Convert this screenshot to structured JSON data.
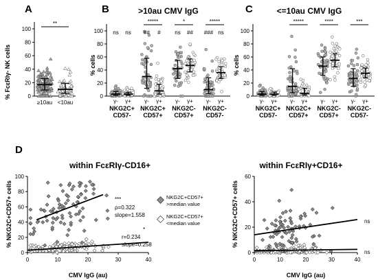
{
  "panels": {
    "A": {
      "label": "A",
      "ylabel": "% FcεRIγ- NK cells",
      "yticks": [
        "0",
        "20",
        "40",
        "60",
        "80",
        "100"
      ],
      "groups": [
        "≥10au",
        "<10au"
      ],
      "sig": "**",
      "chart_data": {
        "type": "scatter",
        "ylim": [
          0,
          100
        ],
        "groups": [
          {
            "name": "≥10au",
            "median": 17,
            "q1": 9,
            "q3": 26,
            "n": 140,
            "marker": "triangle-gray"
          },
          {
            "name": "<10au",
            "median": 10,
            "q1": 4,
            "q3": 19,
            "n": 55,
            "marker": "triangle-white"
          }
        ]
      }
    },
    "B": {
      "label": "B",
      "title": ">10au CMV IgG",
      "ylabel": "% cells",
      "yticks": [
        "0",
        "20",
        "40",
        "60",
        "80",
        "100"
      ],
      "groups": [
        {
          "line1": "NKG2C+",
          "line2": "CD57-",
          "sig": "",
          "ann": [
            "ns",
            "ns"
          ]
        },
        {
          "line1": "NKG2C+",
          "line2": "CD57+",
          "sig": "*****",
          "ann": [
            "##",
            "#"
          ]
        },
        {
          "line1": "NKG2C-",
          "line2": "CD57+",
          "sig": "*",
          "ann": [
            "ns",
            "##"
          ]
        },
        {
          "line1": "NKG2C-",
          "line2": "CD57-",
          "sig": "*****",
          "ann": [
            "###",
            "ns"
          ]
        }
      ],
      "sublabels": [
        "γ-",
        "γ+"
      ],
      "chart_data": {
        "type": "scatter",
        "ylim": [
          0,
          100
        ],
        "series": [
          {
            "group": "NKG2C+CD57-",
            "subset": "γ-",
            "median": 3,
            "q1": 1,
            "q3": 7
          },
          {
            "group": "NKG2C+CD57-",
            "subset": "γ+",
            "median": 3,
            "q1": 1,
            "q3": 6
          },
          {
            "group": "NKG2C+CD57+",
            "subset": "γ-",
            "median": 30,
            "q1": 12,
            "q3": 58
          },
          {
            "group": "NKG2C+CD57+",
            "subset": "γ+",
            "median": 8,
            "q1": 3,
            "q3": 18
          },
          {
            "group": "NKG2C-CD57+",
            "subset": "γ-",
            "median": 42,
            "q1": 27,
            "q3": 55
          },
          {
            "group": "NKG2C-CD57+",
            "subset": "γ+",
            "median": 47,
            "q1": 37,
            "q3": 57
          },
          {
            "group": "NKG2C-CD57-",
            "subset": "γ-",
            "median": 10,
            "q1": 4,
            "q3": 28
          },
          {
            "group": "NKG2C-CD57-",
            "subset": "γ+",
            "median": 36,
            "q1": 27,
            "q3": 45
          }
        ]
      }
    },
    "C": {
      "label": "C",
      "title": "<=10au CMV IgG",
      "ylabel": "% cells",
      "yticks": [
        "0",
        "20",
        "40",
        "60",
        "80",
        "100"
      ],
      "groups": [
        {
          "line1": "NKG2C+",
          "line2": "CD57-",
          "sig": ""
        },
        {
          "line1": "NKG2C+",
          "line2": "CD57+",
          "sig": "*****"
        },
        {
          "line1": "NKG2C-",
          "line2": "CD57+",
          "sig": "****"
        },
        {
          "line1": "NKG2C-",
          "line2": "CD57-",
          "sig": "***"
        }
      ],
      "sublabels": [
        "γ-",
        "γ+"
      ],
      "chart_data": {
        "type": "scatter",
        "ylim": [
          0,
          100
        ],
        "series": [
          {
            "group": "NKG2C+CD57-",
            "subset": "γ-",
            "median": 3,
            "q1": 1,
            "q3": 7
          },
          {
            "group": "NKG2C+CD57-",
            "subset": "γ+",
            "median": 3,
            "q1": 1,
            "q3": 6
          },
          {
            "group": "NKG2C+CD57+",
            "subset": "γ-",
            "median": 15,
            "q1": 5,
            "q3": 42
          },
          {
            "group": "NKG2C+CD57+",
            "subset": "γ+",
            "median": 4,
            "q1": 2,
            "q3": 12
          },
          {
            "group": "NKG2C-CD57+",
            "subset": "γ-",
            "median": 46,
            "q1": 32,
            "q3": 60
          },
          {
            "group": "NKG2C-CD57+",
            "subset": "γ+",
            "median": 55,
            "q1": 45,
            "q3": 65
          },
          {
            "group": "NKG2C-CD57-",
            "subset": "γ-",
            "median": 27,
            "q1": 15,
            "q3": 42
          },
          {
            "group": "NKG2C-CD57-",
            "subset": "γ+",
            "median": 35,
            "q1": 28,
            "q3": 43
          }
        ]
      }
    },
    "D": {
      "label": "D",
      "left": {
        "title": "within FcεRIγ-CD16+",
        "ylabel": "% NKG2C+CD57+ cells",
        "xlabel": "CMV IgG (au)",
        "yticks": [
          "0",
          "20",
          "40",
          "60",
          "80",
          "100"
        ],
        "xticks": [
          "0",
          "10",
          "20",
          "30",
          "40"
        ],
        "ann_upper": [
          "***",
          "ρ=0.322",
          "slope=1.558"
        ],
        "ann_lower": [
          "*",
          "r=0.234",
          "slope=0.258"
        ],
        "chart_data": {
          "type": "scatter",
          "xlim": [
            0,
            40
          ],
          "ylim": [
            0,
            100
          ],
          "series": [
            {
              "name": "NKG2C+CD57+ >median value",
              "marker": "diamond-gray",
              "fit": {
                "x": [
                  3,
                  25
                ],
                "y": [
                  43,
                  76
                ]
              }
            },
            {
              "name": "NKG2C+CD57+ <median value",
              "marker": "diamond-white",
              "fit": {
                "x": [
                  0,
                  40
                ],
                "y": [
                  3,
                  13.5
                ]
              }
            }
          ]
        }
      },
      "legend": {
        "gray_line1": "NKG2C+CD57+",
        "gray_line2": ">median value",
        "white_line1": "NKG2C+CD57+",
        "white_line2": "<median value"
      },
      "right": {
        "title": "within FcεRIγ+CD16+",
        "ylabel": "% NKG2C+CD57+ cells",
        "xlabel": "CMV IgG (au)",
        "yticks": [
          "0",
          "20",
          "40",
          "60"
        ],
        "xticks": [
          "0",
          "10",
          "20",
          "30",
          "40"
        ],
        "ann_upper": "ns",
        "ann_lower": "ns",
        "chart_data": {
          "type": "scatter",
          "xlim": [
            0,
            40
          ],
          "ylim": [
            0,
            60
          ],
          "series": [
            {
              "name": "NKG2C+CD57+ >median value",
              "marker": "diamond-gray",
              "fit": {
                "x": [
                  0,
                  40
                ],
                "y": [
                  14,
                  26
                ]
              }
            },
            {
              "name": "NKG2C+CD57+ <median value",
              "marker": "diamond-white",
              "fit": {
                "x": [
                  0,
                  40
                ],
                "y": [
                  1.5,
                  2.5
                ]
              }
            }
          ]
        }
      }
    }
  }
}
